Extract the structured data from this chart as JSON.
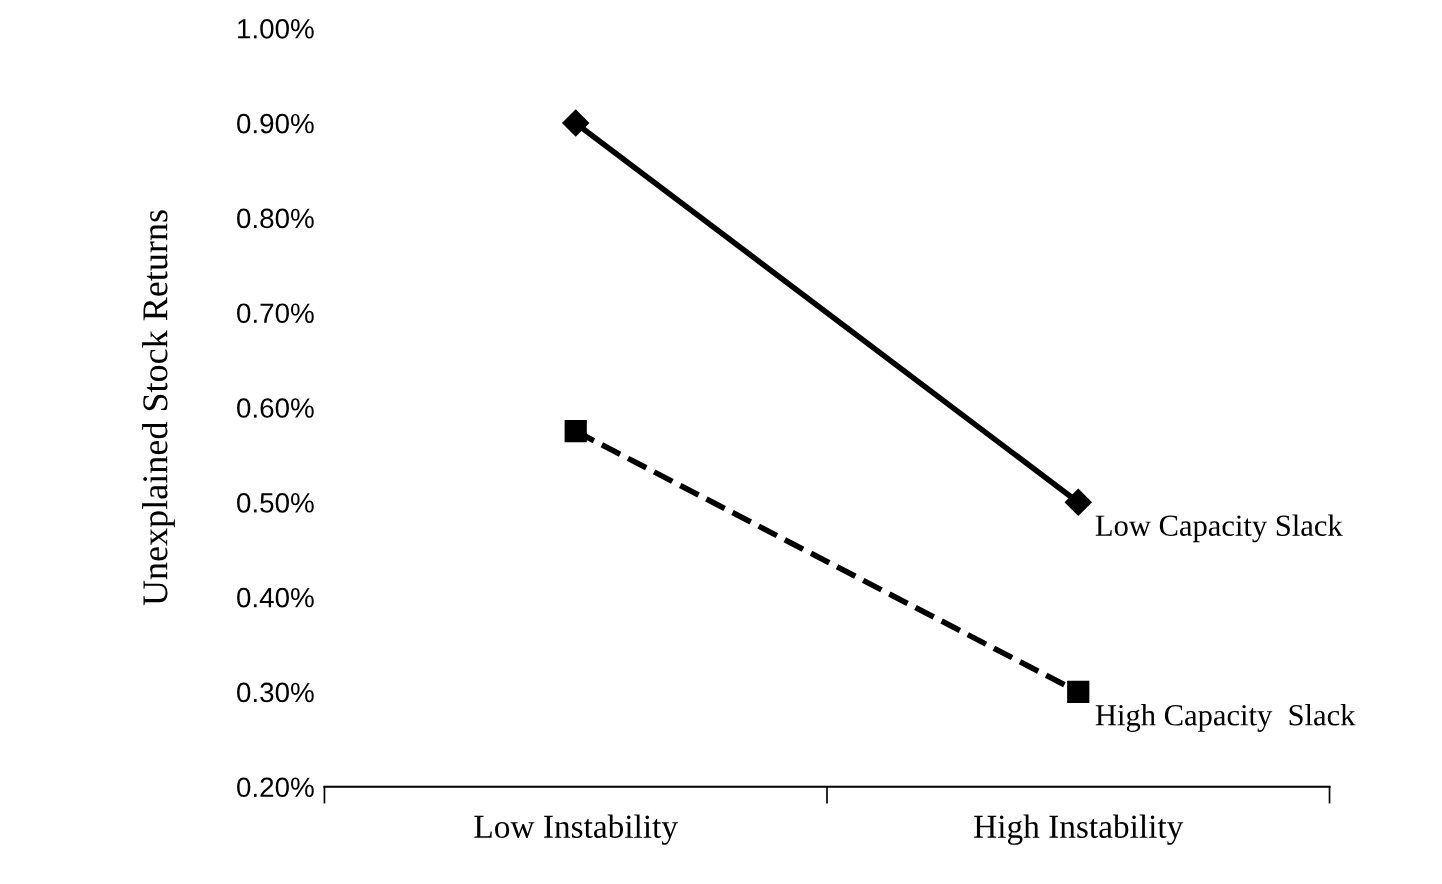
{
  "chart_data": {
    "type": "line",
    "ylabel": "Unexplained Stock Returns",
    "categories": [
      "Low Instability",
      "High Instability"
    ],
    "series": [
      {
        "name": "Low Capacity Slack",
        "color": "#000000",
        "values": [
          0.9,
          0.5
        ],
        "marker": "diamond",
        "line_style": "solid"
      },
      {
        "name": "High Capacity  Slack",
        "color": "#000000",
        "values": [
          0.575,
          0.3
        ],
        "marker": "square",
        "line_style": "dashed"
      }
    ],
    "ylim": [
      0.2,
      1.0
    ],
    "yticks": [
      {
        "value": 0.2,
        "label": "0.20%"
      },
      {
        "value": 0.3,
        "label": "0.30%"
      },
      {
        "value": 0.4,
        "label": "0.40%"
      },
      {
        "value": 0.5,
        "label": "0.50%"
      },
      {
        "value": 0.6,
        "label": "0.60%"
      },
      {
        "value": 0.7,
        "label": "0.70%"
      },
      {
        "value": 0.8,
        "label": "0.80%"
      },
      {
        "value": 0.9,
        "label": "0.90%"
      },
      {
        "value": 1.0,
        "label": "1.00%"
      }
    ],
    "grid": false,
    "legend": false
  }
}
